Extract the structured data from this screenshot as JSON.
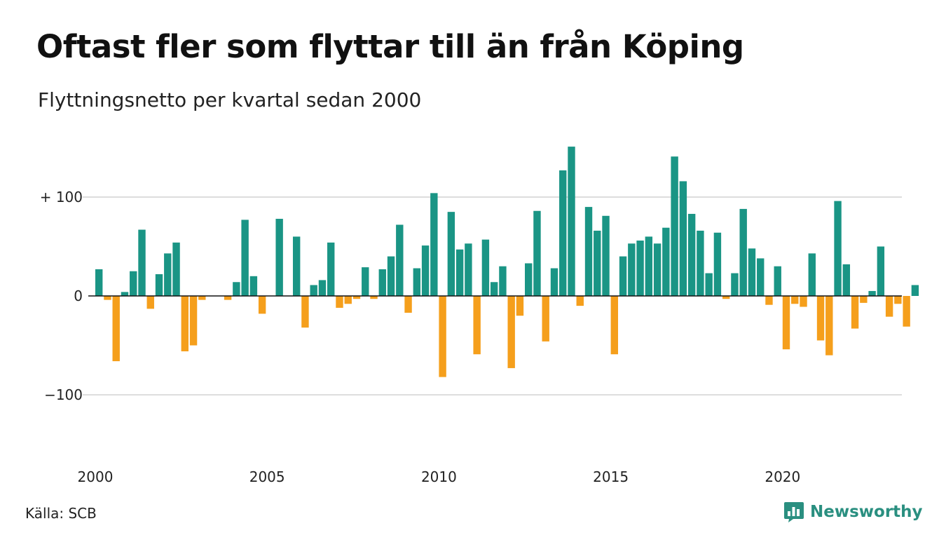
{
  "header": {
    "title": "Oftast fler som flyttar till än från Köping",
    "subtitle": "Flyttningsnetto per kvartal sedan 2000"
  },
  "footer": {
    "source": "Källa: SCB",
    "brand": "Newsworthy",
    "brand_icon": "newsworthy-logo-icon"
  },
  "colors": {
    "positive": "#1a9585",
    "negative": "#f59f1c",
    "gridline": "#dddddd",
    "zero_line": "#111111",
    "brand": "#2a8f80"
  },
  "chart_data": {
    "type": "bar",
    "x_start": 2000,
    "x_step": 0.25,
    "values": [
      27,
      -4,
      -66,
      4,
      25,
      67,
      -13,
      22,
      43,
      54,
      -56,
      -50,
      -4,
      0,
      0,
      -4,
      14,
      77,
      20,
      -18,
      0,
      78,
      0,
      60,
      -32,
      11,
      16,
      54,
      -12,
      -8,
      -3,
      29,
      -3,
      27,
      40,
      72,
      -17,
      28,
      51,
      104,
      -82,
      85,
      47,
      53,
      -59,
      57,
      14,
      30,
      -73,
      -20,
      33,
      86,
      -46,
      28,
      127,
      151,
      -10,
      90,
      66,
      81,
      -59,
      40,
      53,
      56,
      60,
      53,
      69,
      141,
      116,
      83,
      66,
      23,
      64,
      -3,
      23,
      88,
      48,
      38,
      -9,
      30,
      -54,
      -8,
      -11,
      43,
      -45,
      -60,
      96,
      32,
      -33,
      -7,
      5,
      50,
      -21,
      -8,
      -31,
      11
    ],
    "ylim": [
      -160,
      160
    ],
    "yticks": [
      -100,
      0,
      100
    ],
    "ytick_labels": [
      "−100",
      "0",
      "+ 100"
    ],
    "xticks": [
      2000,
      2005,
      2010,
      2015,
      2020
    ],
    "xtick_labels": [
      "2000",
      "2005",
      "2010",
      "2015",
      "2020"
    ],
    "grid": true,
    "legend": "none",
    "title": "Oftast fler som flyttar till än från Köping",
    "subtitle": "Flyttningsnetto per kvartal sedan 2000"
  }
}
